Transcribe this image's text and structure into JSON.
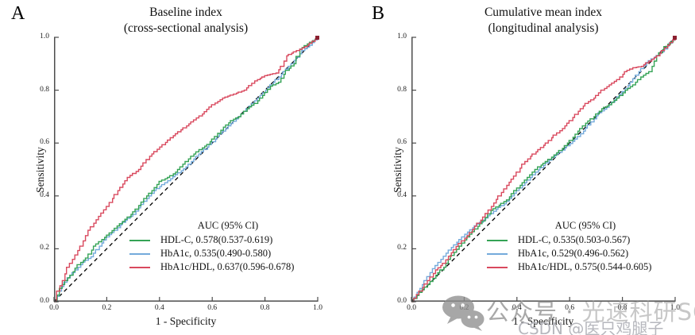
{
  "panels": [
    {
      "letter": "A",
      "title_line1": "Baseline index",
      "title_line2": "(cross-sectional analysis)"
    },
    {
      "letter": "B",
      "title_line1": "Cumulative mean index",
      "title_line2": "(longitudinal analysis)"
    }
  ],
  "watermark": {
    "icon": "wechat-icon",
    "line1_prefix": "公众号 · ",
    "line1_brand": "光速科研SCI",
    "line2": "CSDN @医只鸡腿子"
  },
  "colors": {
    "hdl_c": "#35a356",
    "hba1c": "#74aadb",
    "hba1c_hdl": "#d9495e",
    "axis": "#4d4d4d",
    "reference": "#000000"
  },
  "chart_data": [
    {
      "type": "line",
      "title": "Baseline index (cross-sectional analysis)",
      "xlabel": "1 - Specificity",
      "ylabel": "Sensitivity",
      "xlim": [
        0,
        1
      ],
      "ylim": [
        0,
        1
      ],
      "xticks": [
        "0.0",
        "0.2",
        "0.4",
        "0.6",
        "0.8",
        "1.0"
      ],
      "yticks": [
        "0.0",
        "0.2",
        "0.4",
        "0.6",
        "0.8",
        "1.0"
      ],
      "grid": false,
      "legend_position": "lower right",
      "legend_title": "AUC (95% CI)",
      "diagonal_reference": "dashed black y = x",
      "series": [
        {
          "name": "HDL-C",
          "auc": 0.578,
          "ci": "0.537-0.619",
          "auc_label": "HDL-C, 0.578(0.537-0.619)",
          "color": "#35a356",
          "points": [
            [
              0,
              0
            ],
            [
              0.02,
              0.05
            ],
            [
              0.04,
              0.08
            ],
            [
              0.06,
              0.1
            ],
            [
              0.09,
              0.14
            ],
            [
              0.12,
              0.165
            ],
            [
              0.15,
              0.21
            ],
            [
              0.18,
              0.235
            ],
            [
              0.21,
              0.26
            ],
            [
              0.25,
              0.295
            ],
            [
              0.28,
              0.32
            ],
            [
              0.31,
              0.35
            ],
            [
              0.34,
              0.39
            ],
            [
              0.37,
              0.42
            ],
            [
              0.4,
              0.455
            ],
            [
              0.43,
              0.47
            ],
            [
              0.46,
              0.49
            ],
            [
              0.49,
              0.52
            ],
            [
              0.52,
              0.55
            ],
            [
              0.55,
              0.575
            ],
            [
              0.58,
              0.595
            ],
            [
              0.61,
              0.625
            ],
            [
              0.64,
              0.66
            ],
            [
              0.67,
              0.685
            ],
            [
              0.7,
              0.7
            ],
            [
              0.73,
              0.73
            ],
            [
              0.76,
              0.75
            ],
            [
              0.79,
              0.78
            ],
            [
              0.82,
              0.815
            ],
            [
              0.85,
              0.83
            ],
            [
              0.88,
              0.875
            ],
            [
              0.91,
              0.9
            ],
            [
              0.93,
              0.955
            ],
            [
              0.96,
              0.975
            ],
            [
              1,
              1
            ]
          ]
        },
        {
          "name": "HbA1c",
          "auc": 0.535,
          "ci": "0.490-0.580",
          "auc_label": "HbA1c, 0.535(0.490-0.580)",
          "color": "#74aadb",
          "points": [
            [
              0,
              0
            ],
            [
              0.02,
              0.04
            ],
            [
              0.05,
              0.09
            ],
            [
              0.08,
              0.12
            ],
            [
              0.11,
              0.15
            ],
            [
              0.14,
              0.17
            ],
            [
              0.17,
              0.21
            ],
            [
              0.2,
              0.245
            ],
            [
              0.23,
              0.27
            ],
            [
              0.26,
              0.3
            ],
            [
              0.3,
              0.33
            ],
            [
              0.34,
              0.38
            ],
            [
              0.38,
              0.42
            ],
            [
              0.42,
              0.45
            ],
            [
              0.46,
              0.48
            ],
            [
              0.5,
              0.51
            ],
            [
              0.54,
              0.55
            ],
            [
              0.58,
              0.585
            ],
            [
              0.62,
              0.625
            ],
            [
              0.66,
              0.665
            ],
            [
              0.7,
              0.7
            ],
            [
              0.74,
              0.74
            ],
            [
              0.78,
              0.78
            ],
            [
              0.82,
              0.82
            ],
            [
              0.86,
              0.86
            ],
            [
              0.9,
              0.9
            ],
            [
              0.94,
              0.95
            ],
            [
              0.97,
              0.97
            ],
            [
              1,
              1
            ]
          ]
        },
        {
          "name": "HbA1c/HDL",
          "auc": 0.637,
          "ci": "0.596-0.678",
          "auc_label": "HbA1c/HDL, 0.637(0.596-0.678)",
          "color": "#d9495e",
          "points": [
            [
              0,
              0
            ],
            [
              0.01,
              0.04
            ],
            [
              0.03,
              0.08
            ],
            [
              0.05,
              0.13
            ],
            [
              0.07,
              0.16
            ],
            [
              0.1,
              0.21
            ],
            [
              0.13,
              0.27
            ],
            [
              0.16,
              0.31
            ],
            [
              0.2,
              0.36
            ],
            [
              0.24,
              0.42
            ],
            [
              0.28,
              0.47
            ],
            [
              0.32,
              0.5
            ],
            [
              0.36,
              0.55
            ],
            [
              0.4,
              0.585
            ],
            [
              0.44,
              0.62
            ],
            [
              0.48,
              0.65
            ],
            [
              0.52,
              0.68
            ],
            [
              0.56,
              0.71
            ],
            [
              0.6,
              0.745
            ],
            [
              0.64,
              0.77
            ],
            [
              0.68,
              0.785
            ],
            [
              0.72,
              0.8
            ],
            [
              0.76,
              0.835
            ],
            [
              0.8,
              0.855
            ],
            [
              0.84,
              0.865
            ],
            [
              0.86,
              0.89
            ],
            [
              0.88,
              0.93
            ],
            [
              0.92,
              0.95
            ],
            [
              0.96,
              0.97
            ],
            [
              1,
              1
            ]
          ]
        }
      ]
    },
    {
      "type": "line",
      "title": "Cumulative mean index (longitudinal analysis)",
      "xlabel": "1 - Specificity",
      "ylabel": "Sensitivity",
      "xlim": [
        0,
        1
      ],
      "ylim": [
        0,
        1
      ],
      "xticks": [
        "0.0",
        "0.2",
        "0.4",
        "0.6",
        "0.8",
        "1.0"
      ],
      "yticks": [
        "0.0",
        "0.2",
        "0.4",
        "0.6",
        "0.8",
        "1.0"
      ],
      "grid": false,
      "legend_position": "lower right",
      "legend_title": "AUC (95% CI)",
      "diagonal_reference": "dashed black y = x",
      "series": [
        {
          "name": "HDL-C",
          "auc": 0.535,
          "ci": "0.503-0.567",
          "auc_label": "HDL-C, 0.535(0.503-0.567)",
          "color": "#35a356",
          "points": [
            [
              0,
              0
            ],
            [
              0.03,
              0.035
            ],
            [
              0.06,
              0.065
            ],
            [
              0.09,
              0.1
            ],
            [
              0.12,
              0.13
            ],
            [
              0.15,
              0.175
            ],
            [
              0.18,
              0.21
            ],
            [
              0.21,
              0.245
            ],
            [
              0.24,
              0.275
            ],
            [
              0.27,
              0.305
            ],
            [
              0.3,
              0.345
            ],
            [
              0.33,
              0.365
            ],
            [
              0.36,
              0.385
            ],
            [
              0.39,
              0.42
            ],
            [
              0.42,
              0.45
            ],
            [
              0.45,
              0.48
            ],
            [
              0.48,
              0.51
            ],
            [
              0.51,
              0.53
            ],
            [
              0.54,
              0.555
            ],
            [
              0.57,
              0.58
            ],
            [
              0.6,
              0.61
            ],
            [
              0.63,
              0.645
            ],
            [
              0.66,
              0.675
            ],
            [
              0.69,
              0.7
            ],
            [
              0.72,
              0.73
            ],
            [
              0.75,
              0.745
            ],
            [
              0.78,
              0.77
            ],
            [
              0.81,
              0.8
            ],
            [
              0.84,
              0.82
            ],
            [
              0.87,
              0.85
            ],
            [
              0.9,
              0.87
            ],
            [
              0.93,
              0.93
            ],
            [
              0.96,
              0.965
            ],
            [
              1,
              1
            ]
          ]
        },
        {
          "name": "HbA1c",
          "auc": 0.529,
          "ci": "0.496-0.562",
          "auc_label": "HbA1c, 0.529(0.496-0.562)",
          "color": "#74aadb",
          "points": [
            [
              0,
              0
            ],
            [
              0.02,
              0.035
            ],
            [
              0.05,
              0.08
            ],
            [
              0.08,
              0.125
            ],
            [
              0.11,
              0.16
            ],
            [
              0.14,
              0.195
            ],
            [
              0.17,
              0.225
            ],
            [
              0.2,
              0.255
            ],
            [
              0.23,
              0.28
            ],
            [
              0.26,
              0.3
            ],
            [
              0.29,
              0.325
            ],
            [
              0.32,
              0.35
            ],
            [
              0.35,
              0.37
            ],
            [
              0.38,
              0.4
            ],
            [
              0.41,
              0.43
            ],
            [
              0.44,
              0.46
            ],
            [
              0.47,
              0.49
            ],
            [
              0.5,
              0.515
            ],
            [
              0.53,
              0.545
            ],
            [
              0.56,
              0.565
            ],
            [
              0.59,
              0.59
            ],
            [
              0.62,
              0.615
            ],
            [
              0.65,
              0.645
            ],
            [
              0.68,
              0.68
            ],
            [
              0.71,
              0.715
            ],
            [
              0.74,
              0.735
            ],
            [
              0.77,
              0.765
            ],
            [
              0.8,
              0.795
            ],
            [
              0.83,
              0.83
            ],
            [
              0.86,
              0.87
            ],
            [
              0.89,
              0.905
            ],
            [
              0.92,
              0.925
            ],
            [
              0.95,
              0.945
            ],
            [
              1,
              1
            ]
          ]
        },
        {
          "name": "HbA1c/HDL",
          "auc": 0.575,
          "ci": "0.544-0.605",
          "auc_label": "HbA1c/HDL, 0.575(0.544-0.605)",
          "color": "#d9495e",
          "points": [
            [
              0,
              0
            ],
            [
              0.03,
              0.04
            ],
            [
              0.06,
              0.08
            ],
            [
              0.09,
              0.12
            ],
            [
              0.12,
              0.145
            ],
            [
              0.15,
              0.185
            ],
            [
              0.18,
              0.22
            ],
            [
              0.21,
              0.25
            ],
            [
              0.24,
              0.285
            ],
            [
              0.27,
              0.32
            ],
            [
              0.3,
              0.36
            ],
            [
              0.33,
              0.4
            ],
            [
              0.36,
              0.44
            ],
            [
              0.39,
              0.475
            ],
            [
              0.42,
              0.52
            ],
            [
              0.45,
              0.55
            ],
            [
              0.48,
              0.575
            ],
            [
              0.51,
              0.6
            ],
            [
              0.54,
              0.63
            ],
            [
              0.57,
              0.655
            ],
            [
              0.6,
              0.685
            ],
            [
              0.63,
              0.72
            ],
            [
              0.66,
              0.75
            ],
            [
              0.69,
              0.77
            ],
            [
              0.72,
              0.8
            ],
            [
              0.75,
              0.82
            ],
            [
              0.78,
              0.84
            ],
            [
              0.81,
              0.87
            ],
            [
              0.84,
              0.885
            ],
            [
              0.87,
              0.89
            ],
            [
              0.9,
              0.91
            ],
            [
              0.93,
              0.93
            ],
            [
              0.96,
              0.96
            ],
            [
              1,
              1
            ]
          ]
        }
      ]
    }
  ]
}
